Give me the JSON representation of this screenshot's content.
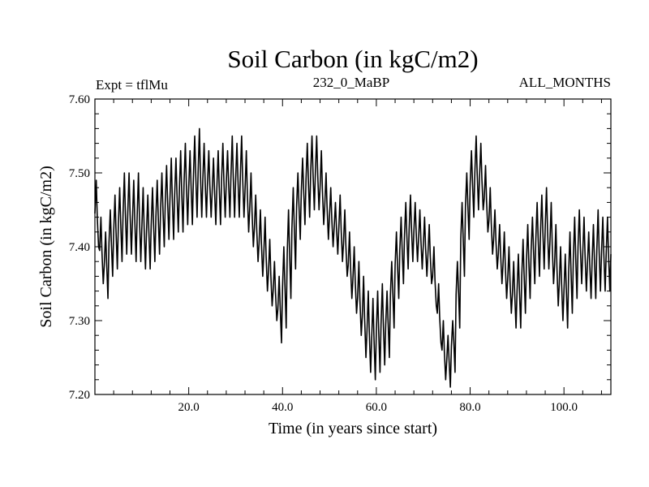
{
  "chart_data": {
    "type": "line",
    "title": "Soil Carbon (in kgC/m2)",
    "subtitle_left": "Expt = tflMu",
    "subtitle_center": "232_0_MaBP",
    "subtitle_right": "ALL_MONTHS",
    "xlabel": "Time (in years since start)",
    "ylabel": "Soil Carbon (in kgC/m2)",
    "xlim": [
      0,
      110
    ],
    "ylim": [
      7.2,
      7.6
    ],
    "x_ticks": [
      20,
      40,
      60,
      80,
      100
    ],
    "x_tick_labels": [
      "20.0",
      "40.0",
      "60.0",
      "80.0",
      "100.0"
    ],
    "y_ticks": [
      7.2,
      7.3,
      7.4,
      7.5,
      7.6
    ],
    "y_tick_labels": [
      "7.20",
      "7.30",
      "7.40",
      "7.50",
      "7.60"
    ],
    "grid": false,
    "line_color": "#000000",
    "series": [
      {
        "name": "Soil Carbon",
        "sampling": "annual seasonal cycle; values listed are yearly max/min envelope",
        "years": [
          0,
          1,
          2,
          3,
          4,
          5,
          6,
          7,
          8,
          9,
          10,
          11,
          12,
          13,
          14,
          15,
          16,
          17,
          18,
          19,
          20,
          21,
          22,
          23,
          24,
          25,
          26,
          27,
          28,
          29,
          30,
          31,
          32,
          33,
          34,
          35,
          36,
          37,
          38,
          39,
          40,
          41,
          42,
          43,
          44,
          45,
          46,
          47,
          48,
          49,
          50,
          51,
          52,
          53,
          54,
          55,
          56,
          57,
          58,
          59,
          60,
          61,
          62,
          63,
          64,
          65,
          66,
          67,
          68,
          69,
          70,
          71,
          72,
          73,
          74,
          75,
          76,
          77,
          78,
          79,
          80,
          81,
          82,
          83,
          84,
          85,
          86,
          87,
          88,
          89,
          90,
          91,
          92,
          93,
          94,
          95,
          96,
          97,
          98,
          99,
          100,
          101,
          102,
          103,
          104,
          105,
          106,
          107,
          108,
          109
        ],
        "annual_max": [
          7.49,
          7.44,
          7.42,
          7.45,
          7.47,
          7.48,
          7.5,
          7.5,
          7.49,
          7.5,
          7.48,
          7.47,
          7.48,
          7.49,
          7.5,
          7.51,
          7.52,
          7.52,
          7.53,
          7.54,
          7.53,
          7.55,
          7.56,
          7.54,
          7.53,
          7.52,
          7.53,
          7.54,
          7.53,
          7.55,
          7.54,
          7.55,
          7.53,
          7.5,
          7.47,
          7.45,
          7.44,
          7.41,
          7.38,
          7.36,
          7.4,
          7.45,
          7.48,
          7.5,
          7.52,
          7.54,
          7.55,
          7.55,
          7.53,
          7.5,
          7.48,
          7.46,
          7.47,
          7.45,
          7.42,
          7.4,
          7.38,
          7.36,
          7.34,
          7.33,
          7.34,
          7.35,
          7.34,
          7.38,
          7.42,
          7.44,
          7.46,
          7.47,
          7.46,
          7.45,
          7.44,
          7.43,
          7.4,
          7.35,
          7.3,
          7.28,
          7.3,
          7.38,
          7.46,
          7.5,
          7.53,
          7.55,
          7.54,
          7.51,
          7.48,
          7.45,
          7.43,
          7.42,
          7.4,
          7.38,
          7.39,
          7.41,
          7.43,
          7.44,
          7.46,
          7.47,
          7.48,
          7.46,
          7.43,
          7.4,
          7.39,
          7.42,
          7.44,
          7.45,
          7.44,
          7.42,
          7.43,
          7.45,
          7.44,
          7.44
        ],
        "annual_min": [
          7.4,
          7.35,
          7.33,
          7.36,
          7.37,
          7.38,
          7.39,
          7.39,
          7.38,
          7.38,
          7.37,
          7.37,
          7.38,
          7.39,
          7.4,
          7.41,
          7.41,
          7.42,
          7.42,
          7.43,
          7.43,
          7.44,
          7.44,
          7.44,
          7.44,
          7.43,
          7.43,
          7.44,
          7.44,
          7.44,
          7.44,
          7.44,
          7.42,
          7.4,
          7.38,
          7.36,
          7.34,
          7.32,
          7.3,
          7.27,
          7.29,
          7.33,
          7.37,
          7.41,
          7.43,
          7.44,
          7.45,
          7.45,
          7.43,
          7.41,
          7.4,
          7.39,
          7.38,
          7.36,
          7.33,
          7.31,
          7.28,
          7.25,
          7.23,
          7.22,
          7.23,
          7.24,
          7.25,
          7.29,
          7.33,
          7.35,
          7.37,
          7.38,
          7.38,
          7.37,
          7.36,
          7.35,
          7.32,
          7.27,
          7.22,
          7.21,
          7.23,
          7.29,
          7.36,
          7.41,
          7.44,
          7.45,
          7.45,
          7.42,
          7.39,
          7.37,
          7.35,
          7.33,
          7.31,
          7.29,
          7.29,
          7.31,
          7.33,
          7.35,
          7.36,
          7.37,
          7.37,
          7.35,
          7.32,
          7.3,
          7.29,
          7.31,
          7.33,
          7.35,
          7.34,
          7.33,
          7.33,
          7.34,
          7.34,
          7.34
        ]
      }
    ]
  }
}
